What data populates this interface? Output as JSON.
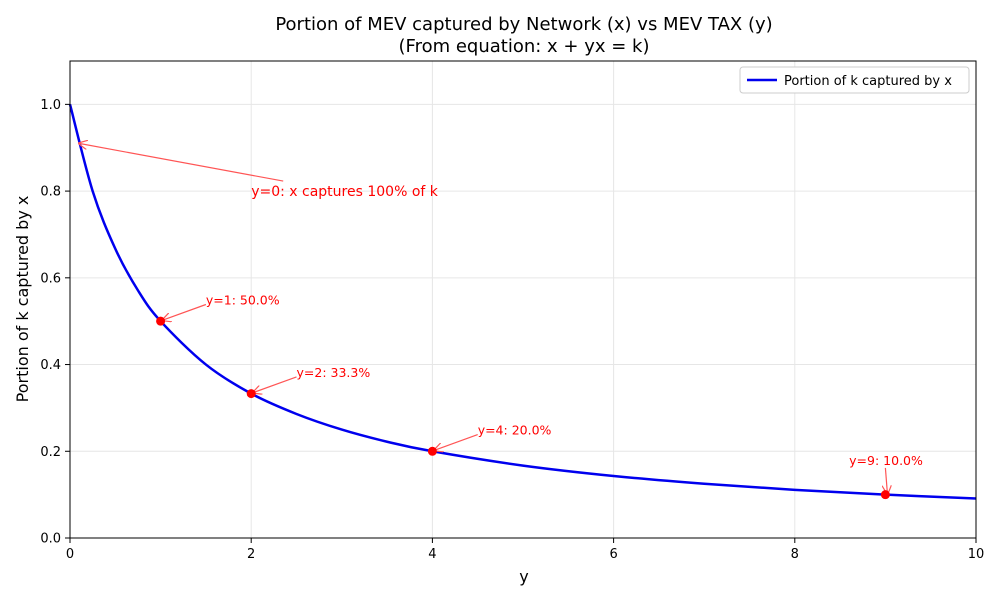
{
  "chart_data": {
    "type": "line",
    "title_line1": "Portion of MEV captured by Network (x) vs MEV TAX (y)",
    "title_line2": "(From equation: x + yx = k)",
    "xlabel": "y",
    "ylabel": "Portion of k captured by x",
    "xlim": [
      0,
      10
    ],
    "ylim": [
      0,
      1.1
    ],
    "x_ticks": [
      "0",
      "2",
      "4",
      "6",
      "8",
      "10"
    ],
    "x_tick_values": [
      0,
      2,
      4,
      6,
      8,
      10
    ],
    "y_ticks": [
      "0.0",
      "0.2",
      "0.4",
      "0.6",
      "0.8",
      "1.0"
    ],
    "y_tick_values": [
      0,
      0.2,
      0.4,
      0.6,
      0.8,
      1.0
    ],
    "grid": true,
    "legend_position": "top-right",
    "series": [
      {
        "name": "Portion of k captured by x",
        "color": "#0000ee",
        "x": [
          0,
          0.25,
          0.5,
          0.75,
          1,
          1.5,
          2,
          2.5,
          3,
          3.5,
          4,
          5,
          6,
          7,
          8,
          9,
          10
        ],
        "y": [
          1.0,
          0.8,
          0.667,
          0.571,
          0.5,
          0.4,
          0.333,
          0.286,
          0.25,
          0.222,
          0.2,
          0.167,
          0.143,
          0.125,
          0.111,
          0.1,
          0.091
        ]
      }
    ],
    "points": [
      {
        "x": 1,
        "y": 0.5
      },
      {
        "x": 2,
        "y": 0.333
      },
      {
        "x": 4,
        "y": 0.2
      },
      {
        "x": 9,
        "y": 0.1
      }
    ],
    "annotations": [
      {
        "text": "y=0: x captures 100% of k",
        "point_x": 0.1,
        "point_y": 0.91,
        "text_x": 2,
        "text_y": 0.8
      },
      {
        "text": "y=1: 50.0%",
        "point_x": 1,
        "point_y": 0.5,
        "text_x": 1.5,
        "text_y": 0.55
      },
      {
        "text": "y=2: 33.3%",
        "point_x": 2,
        "point_y": 0.333,
        "text_x": 2.5,
        "text_y": 0.383
      },
      {
        "text": "y=4: 20.0%",
        "point_x": 4,
        "point_y": 0.2,
        "text_x": 4.5,
        "text_y": 0.25
      },
      {
        "text": "y=9: 10.0%",
        "point_x": 9,
        "point_y": 0.1,
        "text_x": 8.6,
        "text_y": 0.18
      }
    ],
    "point_color": "#ff0000",
    "annotation_color": "#ff0000"
  }
}
